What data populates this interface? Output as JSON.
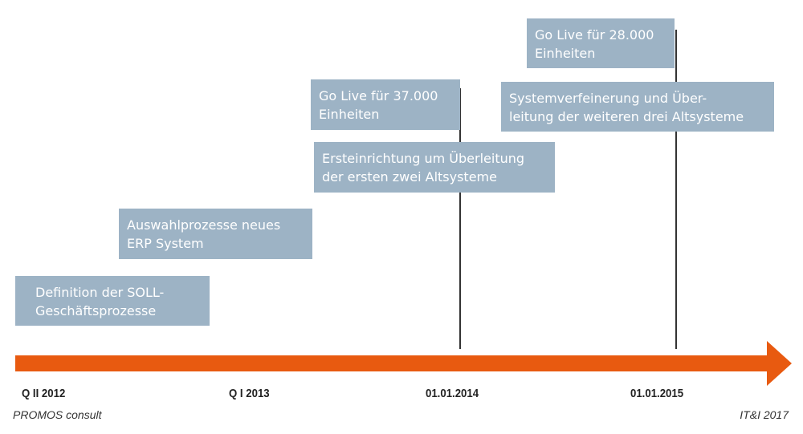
{
  "colors": {
    "box": "#9db3c5",
    "arrow": "#e85a10"
  },
  "boxes": [
    {
      "lines": [
        "Definition der SOLL-",
        "Geschäftsprozesse"
      ]
    },
    {
      "lines": [
        "Auswahlprozesse neues",
        "ERP System"
      ]
    },
    {
      "lines": [
        "Go Live für 37.000",
        "Einheiten"
      ]
    },
    {
      "lines": [
        "Ersteinrichtung um Überleitung",
        "der ersten zwei Altsysteme"
      ]
    },
    {
      "lines": [
        "Go Live für 28.000",
        "Einheiten"
      ]
    },
    {
      "lines": [
        "Systemverfeinerung und Über-",
        "leitung der weiteren drei Altsysteme"
      ]
    }
  ],
  "timeline": [
    "Q II 2012",
    "Q I 2013",
    "01.01.2014",
    "01.01.2015"
  ],
  "footer": {
    "left": "PROMOS consult",
    "right": "IT&I 2017"
  }
}
